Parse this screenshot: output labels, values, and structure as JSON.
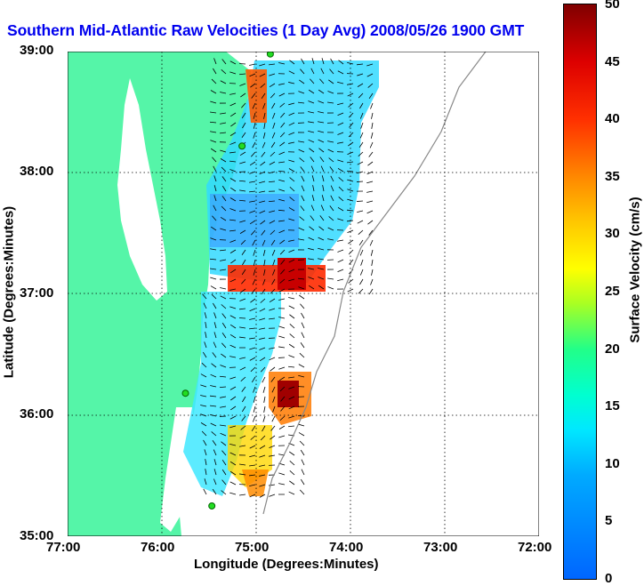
{
  "title": "Southern Mid-Atlantic Raw Velocities (1 Day Avg) 2008/05/26 1900 GMT",
  "xlabel": "Longitude (Degrees:Minutes)",
  "ylabel": "Latitude (Degrees:Minutes)",
  "colorbar_label": "Surface Velocity (cm/s)",
  "x_ticks": [
    "77:00",
    "76:00",
    "75:00",
    "74:00",
    "73:00",
    "72:00"
  ],
  "y_ticks": [
    "39:00",
    "38:00",
    "37:00",
    "36:00",
    "35:00"
  ],
  "colorbar_ticks": [
    "50",
    "45",
    "40",
    "35",
    "30",
    "25",
    "20",
    "15",
    "10",
    "5",
    "0"
  ],
  "map": {
    "lon_range": [
      -77,
      -72
    ],
    "lat_range": [
      35,
      39
    ],
    "colorbar_range": [
      0,
      50
    ],
    "colors": {
      "land": "#55f5a8",
      "ocean": "#ffffff",
      "grid": "#000000",
      "title": "#0000ee"
    },
    "stations": [
      {
        "lon": -74.85,
        "lat": 38.98
      },
      {
        "lon": -75.15,
        "lat": 38.22
      },
      {
        "lon": -75.75,
        "lat": 36.18
      },
      {
        "lon": -75.47,
        "lat": 35.25
      }
    ]
  }
}
